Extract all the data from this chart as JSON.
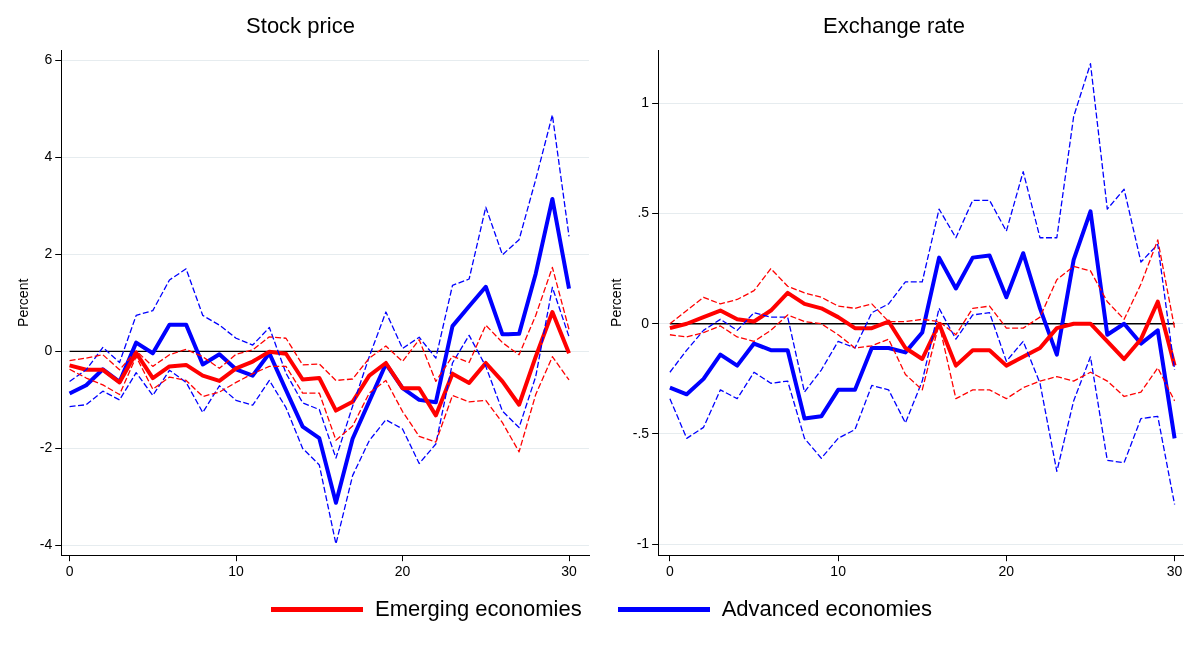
{
  "chart_data": [
    {
      "type": "line",
      "title": "Stock price",
      "ylabel": "Percent",
      "x": [
        0,
        1,
        2,
        3,
        4,
        5,
        6,
        7,
        8,
        9,
        10,
        11,
        12,
        13,
        14,
        15,
        16,
        17,
        18,
        19,
        20,
        21,
        22,
        23,
        24,
        25,
        26,
        27,
        28,
        29,
        30
      ],
      "xlim": [
        -0.5,
        31.2
      ],
      "xticks": [
        0,
        10,
        20,
        30
      ],
      "ylim": [
        -4.2,
        6.2
      ],
      "yticks": [
        -4,
        -2,
        0,
        2,
        4,
        6
      ],
      "grid": "y",
      "legend": "bottom",
      "marker": "none",
      "line_style": "solid",
      "ref_lines": [
        {
          "axis": "y",
          "value": 0,
          "color": "#000000"
        }
      ],
      "series": [
        {
          "color": "#ff0000",
          "line_style": "dashed",
          "values": [
            -0.19,
            -0.14,
            -0.07,
            -0.38,
            0.01,
            -0.31,
            -0.07,
            0.04,
            -0.11,
            -0.35,
            -0.06,
            0.03,
            0.3,
            0.27,
            -0.28,
            -0.26,
            -0.6,
            -0.57,
            -0.14,
            0.11,
            -0.21,
            0.24,
            -0.62,
            -0.1,
            -0.23,
            0.54,
            0.18,
            -0.07,
            0.74,
            1.73,
            0.45
          ]
        },
        {
          "color": "#ff0000",
          "line_style": "dashed",
          "values": [
            -0.37,
            -0.55,
            -0.69,
            -0.89,
            -0.11,
            -0.78,
            -0.53,
            -0.6,
            -0.93,
            -0.84,
            -0.64,
            -0.46,
            -0.31,
            -0.31,
            -0.86,
            -0.86,
            -1.83,
            -1.54,
            -0.86,
            -0.6,
            -1.24,
            -1.75,
            -1.87,
            -0.91,
            -1.04,
            -1.01,
            -1.47,
            -2.07,
            -0.89,
            -0.11,
            -0.59
          ]
        },
        {
          "color": "#0000ff",
          "line_style": "dashed",
          "values": [
            -0.62,
            -0.38,
            0.08,
            -0.23,
            0.74,
            0.84,
            1.47,
            1.7,
            0.74,
            0.54,
            0.27,
            0.13,
            0.49,
            -0.45,
            -1.06,
            -1.2,
            -2.2,
            -1.13,
            -0.11,
            0.81,
            0.06,
            0.29,
            -0.14,
            1.36,
            1.49,
            2.97,
            1.99,
            2.3,
            3.54,
            4.87,
            2.37
          ]
        },
        {
          "color": "#0000ff",
          "line_style": "dashed",
          "values": [
            -1.14,
            -1.1,
            -0.82,
            -1.0,
            -0.44,
            -0.91,
            -0.39,
            -0.64,
            -1.26,
            -0.71,
            -1.01,
            -1.11,
            -0.6,
            -1.16,
            -2.0,
            -2.34,
            -3.97,
            -2.56,
            -1.84,
            -1.41,
            -1.6,
            -2.31,
            -1.91,
            -0.24,
            0.33,
            -0.31,
            -1.23,
            -1.57,
            -0.52,
            1.32,
            0.3
          ]
        },
        {
          "name": "Emerging economies",
          "color": "#ff0000",
          "values": [
            -0.29,
            -0.38,
            -0.38,
            -0.64,
            -0.03,
            -0.55,
            -0.31,
            -0.28,
            -0.5,
            -0.61,
            -0.35,
            -0.21,
            -0.01,
            -0.05,
            -0.58,
            -0.55,
            -1.22,
            -1.04,
            -0.5,
            -0.24,
            -0.76,
            -0.76,
            -1.32,
            -0.46,
            -0.65,
            -0.24,
            -0.62,
            -1.1,
            -0.11,
            0.81,
            -0.04
          ]
        },
        {
          "name": "Advanced economies",
          "color": "#0000ff",
          "values": [
            -0.87,
            -0.7,
            -0.37,
            -0.63,
            0.18,
            -0.04,
            0.55,
            0.55,
            -0.27,
            -0.06,
            -0.37,
            -0.5,
            -0.04,
            -0.8,
            -1.55,
            -1.79,
            -3.12,
            -1.8,
            -1.03,
            -0.26,
            -0.76,
            -1.0,
            -1.05,
            0.52,
            0.93,
            1.33,
            0.35,
            0.36,
            1.6,
            3.14,
            1.29
          ]
        }
      ]
    },
    {
      "type": "line",
      "title": "Exchange rate",
      "ylabel": "Percent",
      "x": [
        0,
        1,
        2,
        3,
        4,
        5,
        6,
        7,
        8,
        9,
        10,
        11,
        12,
        13,
        14,
        15,
        16,
        17,
        18,
        19,
        20,
        21,
        22,
        23,
        24,
        25,
        26,
        27,
        28,
        29,
        30
      ],
      "xlim": [
        -0.7,
        30.5
      ],
      "xticks": [
        0,
        10,
        20,
        30
      ],
      "ylim": [
        -1.05,
        1.24
      ],
      "yticks": [
        {
          "value": -1,
          "label": "-1"
        },
        {
          "value": -0.5,
          "label": "-.5"
        },
        0,
        {
          "value": 0.5,
          "label": ".5"
        },
        1
      ],
      "grid": "y",
      "legend": "bottom",
      "marker": "none",
      "line_style": "solid",
      "ref_lines": [
        {
          "axis": "y",
          "value": 0,
          "color": "#000000"
        }
      ],
      "series": [
        {
          "color": "#ff0000",
          "line_style": "dashed",
          "values": [
            0.0,
            0.06,
            0.12,
            0.09,
            0.11,
            0.15,
            0.25,
            0.17,
            0.14,
            0.12,
            0.08,
            0.07,
            0.09,
            0.01,
            0.01,
            0.02,
            0.01,
            -0.05,
            0.07,
            0.08,
            -0.02,
            -0.02,
            0.03,
            0.2,
            0.26,
            0.24,
            0.1,
            0.02,
            0.18,
            0.38,
            -0.02
          ]
        },
        {
          "color": "#ff0000",
          "line_style": "dashed",
          "values": [
            -0.05,
            -0.06,
            -0.04,
            -0.01,
            -0.06,
            -0.08,
            -0.03,
            0.04,
            0.01,
            0.0,
            -0.05,
            -0.11,
            -0.1,
            -0.07,
            -0.23,
            -0.3,
            0.0,
            -0.34,
            -0.3,
            -0.3,
            -0.34,
            -0.29,
            -0.26,
            -0.24,
            -0.26,
            -0.22,
            -0.26,
            -0.33,
            -0.31,
            -0.2,
            -0.35
          ]
        },
        {
          "color": "#0000ff",
          "line_style": "dashed",
          "values": [
            -0.22,
            -0.12,
            -0.03,
            0.02,
            -0.03,
            0.05,
            0.03,
            0.03,
            -0.31,
            -0.21,
            -0.08,
            -0.11,
            0.05,
            0.09,
            0.19,
            0.19,
            0.52,
            0.39,
            0.56,
            0.56,
            0.42,
            0.69,
            0.39,
            0.39,
            0.94,
            1.18,
            0.52,
            0.61,
            0.28,
            0.36,
            -0.21
          ]
        },
        {
          "color": "#0000ff",
          "line_style": "dashed",
          "values": [
            -0.34,
            -0.52,
            -0.47,
            -0.3,
            -0.34,
            -0.22,
            -0.27,
            -0.26,
            -0.52,
            -0.61,
            -0.52,
            -0.48,
            -0.28,
            -0.3,
            -0.45,
            -0.26,
            0.07,
            -0.07,
            0.04,
            0.05,
            -0.17,
            -0.08,
            -0.27,
            -0.67,
            -0.35,
            -0.15,
            -0.62,
            -0.63,
            -0.43,
            -0.42,
            -0.82
          ]
        },
        {
          "name": "Emerging economies",
          "color": "#ff0000",
          "values": [
            -0.02,
            0.0,
            0.03,
            0.06,
            0.02,
            0.01,
            0.06,
            0.14,
            0.09,
            0.07,
            0.03,
            -0.02,
            -0.02,
            0.01,
            -0.11,
            -0.16,
            0.0,
            -0.19,
            -0.12,
            -0.12,
            -0.19,
            -0.15,
            -0.11,
            -0.02,
            0.0,
            0.0,
            -0.08,
            -0.16,
            -0.07,
            0.1,
            -0.19
          ]
        },
        {
          "name": "Advanced economies",
          "color": "#0000ff",
          "values": [
            -0.29,
            -0.32,
            -0.25,
            -0.14,
            -0.19,
            -0.09,
            -0.12,
            -0.12,
            -0.43,
            -0.42,
            -0.3,
            -0.3,
            -0.11,
            -0.11,
            -0.13,
            -0.04,
            0.3,
            0.16,
            0.3,
            0.31,
            0.12,
            0.32,
            0.07,
            -0.14,
            0.29,
            0.51,
            -0.05,
            0.0,
            -0.09,
            -0.03,
            -0.52
          ]
        }
      ]
    }
  ]
}
